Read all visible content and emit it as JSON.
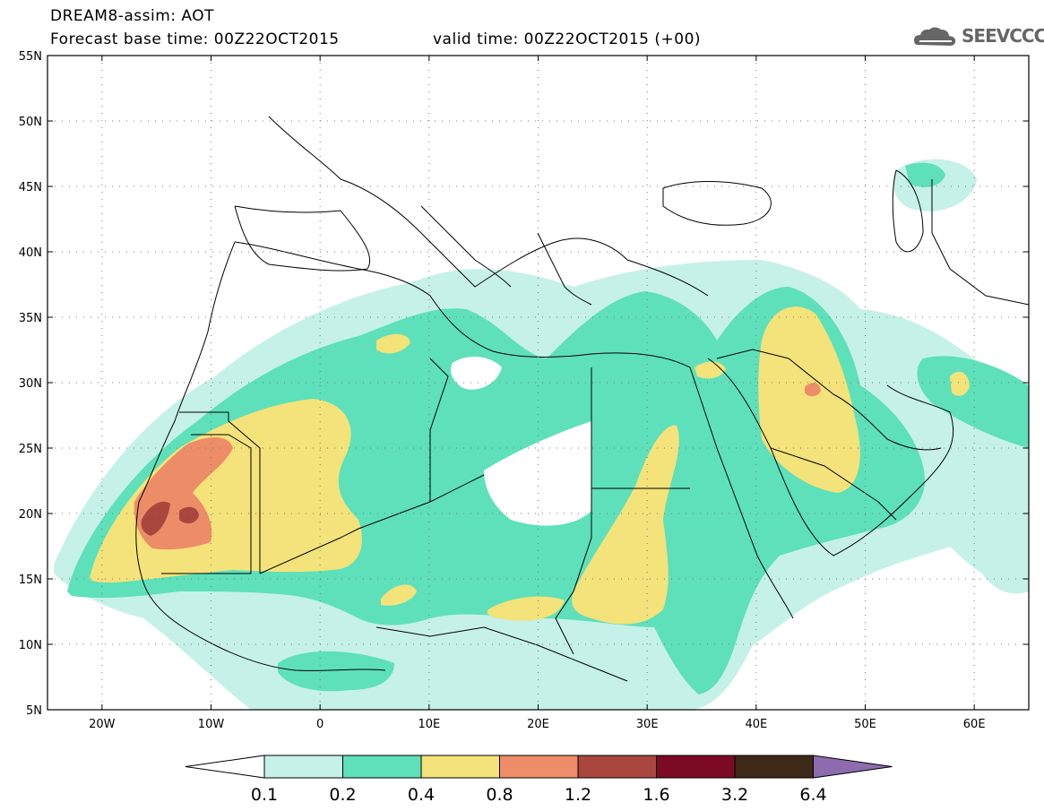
{
  "header": {
    "line1": "DREAM8-assim: AOT",
    "line2_left": "Forecast base time: 00Z22OCT2015",
    "line2_right": "valid time: 00Z22OCT2015 (+00)",
    "logo_text": "SEEVCCC",
    "logo_icon": "cloud-icon"
  },
  "axes": {
    "lat_labels": [
      "55N",
      "50N",
      "45N",
      "40N",
      "35N",
      "30N",
      "25N",
      "20N",
      "15N",
      "10N",
      "5N"
    ],
    "lon_labels": [
      "20W",
      "10W",
      "0",
      "10E",
      "20E",
      "30E",
      "40E",
      "50E",
      "60E"
    ]
  },
  "colorbar": {
    "labels": [
      "0.1",
      "0.2",
      "0.4",
      "0.8",
      "1.2",
      "1.6",
      "3.2",
      "6.4"
    ],
    "colors": [
      "#ffffff",
      "#c6f1e8",
      "#5ee0bb",
      "#f4e27a",
      "#ed8d68",
      "#a9473f",
      "#7c0a25",
      "#3e2817",
      "#8c6cae"
    ]
  },
  "colors": {
    "very_light": "#c6f1e8",
    "light": "#5ee0bb",
    "moderate": "#f4e27a",
    "high": "#ed8d68",
    "very_high": "#a9473f"
  }
}
